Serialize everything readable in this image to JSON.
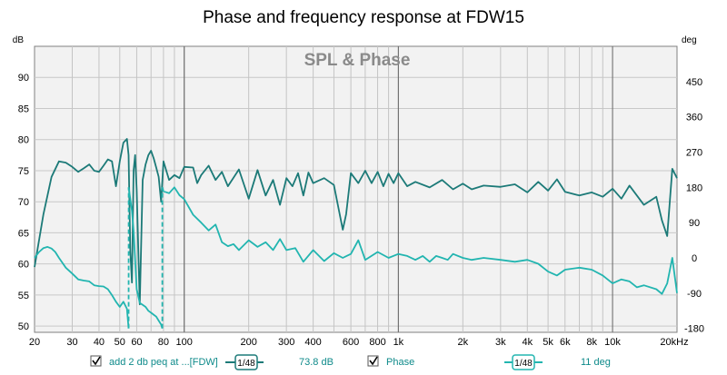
{
  "chart_data": {
    "type": "line",
    "title": "Phase and frequency response at FDW15",
    "watermark": "SPL & Phase",
    "left_axis": {
      "unit": "dB",
      "range": [
        49,
        95
      ],
      "ticks": [
        50,
        55,
        60,
        65,
        70,
        75,
        80,
        85,
        90
      ]
    },
    "right_axis": {
      "unit": "deg",
      "range": [
        -190,
        540
      ],
      "ticks": [
        -180,
        -90,
        0,
        90,
        180,
        270,
        360,
        450
      ]
    },
    "x_axis": {
      "scale": "log",
      "range": [
        20,
        20000
      ],
      "tick_values": [
        20,
        30,
        40,
        50,
        60,
        80,
        100,
        200,
        300,
        400,
        600,
        800,
        1000,
        2000,
        3000,
        4000,
        5000,
        6000,
        8000,
        10000,
        20000
      ],
      "tick_labels": [
        "20",
        "30",
        "40",
        "50",
        "60",
        "80",
        "100",
        "200",
        "300",
        "400",
        "600",
        "800",
        "1k",
        "2k",
        "3k",
        "4k",
        "5k",
        "6k",
        "8k",
        "10k",
        "20kHz"
      ]
    },
    "series": [
      {
        "name": "add 2 db peq at ...[FDW]",
        "axis": "left",
        "color": "#1c7a78",
        "smoothing": "1/48",
        "cursor_value": "73.8 dB",
        "x": [
          20,
          22,
          24,
          26,
          28,
          30,
          32,
          34,
          36,
          38,
          40,
          42,
          44,
          46,
          48,
          50,
          52,
          54,
          55,
          56,
          57,
          58,
          59,
          60,
          62,
          64,
          66,
          68,
          70,
          72,
          74,
          76,
          78,
          80,
          85,
          90,
          95,
          100,
          110,
          115,
          120,
          130,
          140,
          150,
          160,
          180,
          200,
          220,
          240,
          260,
          280,
          300,
          320,
          340,
          360,
          380,
          400,
          450,
          500,
          550,
          570,
          600,
          650,
          700,
          750,
          800,
          850,
          900,
          950,
          1000,
          1100,
          1200,
          1400,
          1600,
          1800,
          2000,
          2200,
          2500,
          3000,
          3500,
          4000,
          4500,
          5000,
          5500,
          6000,
          7000,
          8000,
          9000,
          10000,
          11000,
          12000,
          14000,
          16000,
          17000,
          18000,
          19000,
          20000
        ],
        "values": [
          59.5,
          68,
          74,
          76.5,
          76.3,
          75.6,
          74.8,
          75.4,
          76,
          75,
          74.8,
          75.8,
          76.8,
          76.5,
          72.5,
          76.5,
          79.5,
          80.1,
          77.5,
          62,
          57,
          75,
          77.5,
          72,
          53.5,
          73.5,
          76,
          77.5,
          78.2,
          77,
          75.5,
          74,
          70,
          76.5,
          73.5,
          74.3,
          73.8,
          75.6,
          75.5,
          73,
          74.3,
          75.8,
          73.5,
          74.8,
          72.5,
          75.2,
          70.5,
          75.1,
          71,
          73.5,
          69.5,
          73.8,
          72.5,
          74.6,
          71,
          74.7,
          73,
          73.8,
          72.7,
          65.5,
          68,
          74.6,
          73,
          75,
          73,
          74.8,
          72.5,
          74.5,
          73,
          74.6,
          72.5,
          73.2,
          72.3,
          73.5,
          72,
          72.9,
          72,
          72.6,
          72.4,
          72.8,
          71.5,
          73.2,
          71.8,
          73.6,
          71.6,
          71,
          71.5,
          70.8,
          72.1,
          70.5,
          72.6,
          69.5,
          70.8,
          67,
          64.5,
          75.3,
          73.8
        ]
      },
      {
        "name": "Phase",
        "axis": "right",
        "color": "#22b5b0",
        "smoothing": "1/48",
        "cursor_value": "11 deg",
        "x": [
          20,
          21,
          22,
          23,
          24,
          25,
          26,
          28,
          30,
          32,
          34,
          36,
          38,
          40,
          42,
          44,
          46,
          48,
          50,
          52,
          54,
          55,
          55.01,
          56,
          57,
          58,
          60,
          62,
          64,
          66,
          68,
          70,
          72,
          74,
          76,
          78,
          79,
          79.01,
          80,
          85,
          90,
          95,
          100,
          110,
          120,
          130,
          140,
          150,
          160,
          170,
          180,
          200,
          220,
          240,
          260,
          280,
          300,
          330,
          360,
          400,
          450,
          500,
          550,
          600,
          650,
          700,
          800,
          900,
          1000,
          1100,
          1200,
          1300,
          1400,
          1500,
          1600,
          1700,
          1800,
          2000,
          2200,
          2500,
          3000,
          3500,
          4000,
          4500,
          5000,
          5500,
          6000,
          7000,
          8000,
          9000,
          10000,
          11000,
          12000,
          13000,
          14000,
          16000,
          17000,
          18000,
          19000,
          20000
        ],
        "values": [
          0,
          15,
          25,
          28,
          24,
          15,
          0,
          -25,
          -40,
          -55,
          -58,
          -60,
          -70,
          -72,
          -73,
          -80,
          -95,
          -112,
          -125,
          -112,
          -130,
          -180,
          180,
          150,
          120,
          70,
          -80,
          -115,
          -120,
          -125,
          -135,
          -140,
          -145,
          -150,
          -160,
          -170,
          -180,
          180,
          170,
          165,
          180,
          160,
          150,
          110,
          90,
          70,
          85,
          40,
          30,
          35,
          20,
          45,
          28,
          40,
          20,
          48,
          20,
          25,
          -10,
          20,
          -8,
          12,
          0,
          10,
          45,
          -5,
          15,
          0,
          10,
          5,
          -5,
          5,
          -10,
          5,
          0,
          -5,
          10,
          0,
          -5,
          0,
          -5,
          -10,
          -5,
          -15,
          -35,
          -45,
          -30,
          -25,
          -30,
          -45,
          -65,
          -55,
          -60,
          -75,
          -70,
          -80,
          -92,
          -65,
          0,
          -90
        ]
      }
    ],
    "legend": [
      {
        "checkbox": "checked",
        "label": "add 2 db peq at ...[FDW]",
        "smoothing": "1/48",
        "value": "73.8 dB"
      },
      {
        "checkbox": "checked",
        "label": "Phase",
        "smoothing": "1/48",
        "value": "11 deg"
      }
    ]
  }
}
